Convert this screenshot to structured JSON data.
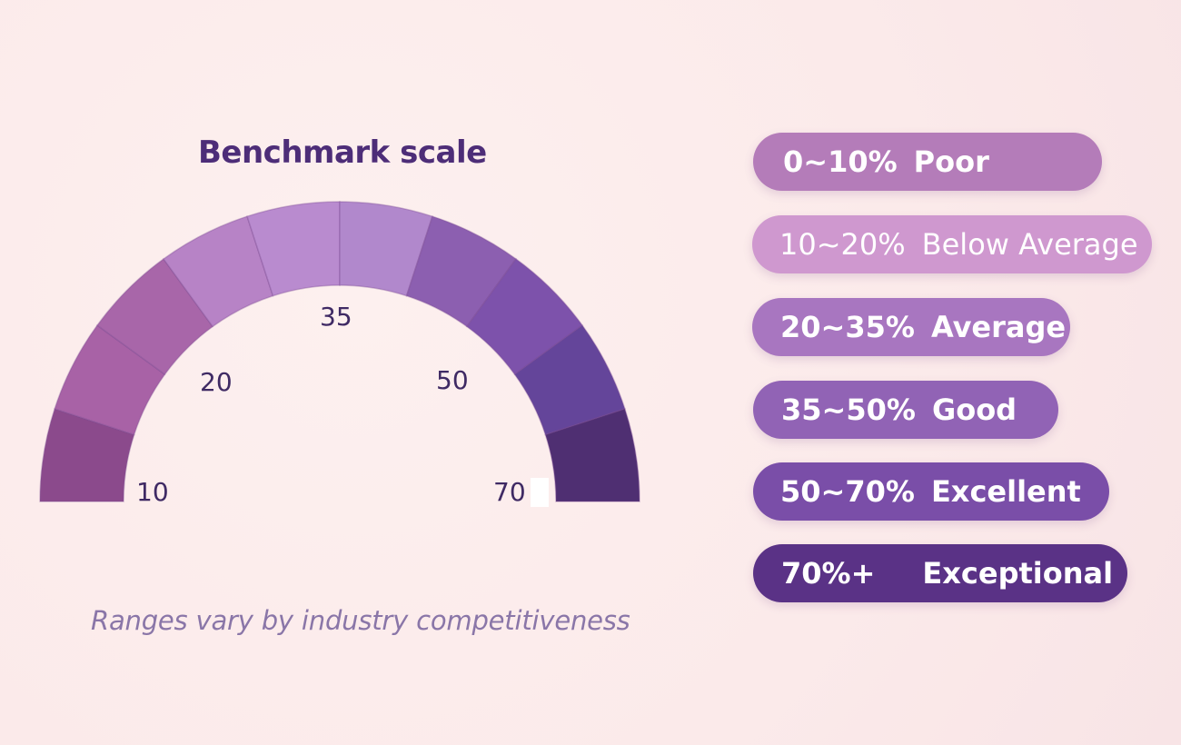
{
  "title": "Benchmark scale",
  "caption": "Ranges vary by industry competitiveness",
  "gauge": {
    "tick_labels": [
      "10",
      "20",
      "35",
      "50",
      "70"
    ],
    "segment_colors": [
      "#8b4a8c",
      "#a862a6",
      "#a866a9",
      "#b783c6",
      "#b98bcf",
      "#b188cc",
      "#8c5fb0",
      "#7d52ab",
      "#64459a",
      "#4f2f72"
    ]
  },
  "legend": [
    {
      "range": "0~10%",
      "label": "Poor",
      "color": "#b47cb9"
    },
    {
      "range": "10~20%",
      "label": "Below Average",
      "color": "#cf98cf"
    },
    {
      "range": "20~35%",
      "label": "Average",
      "color": "#a876c0"
    },
    {
      "range": "35~50%",
      "label": "Good",
      "color": "#9163b5"
    },
    {
      "range": "50~70%",
      "label": "Excellent",
      "color": "#7a4ea8"
    },
    {
      "range": "70%+",
      "label": "Exceptional",
      "color": "#5a3286"
    }
  ]
}
